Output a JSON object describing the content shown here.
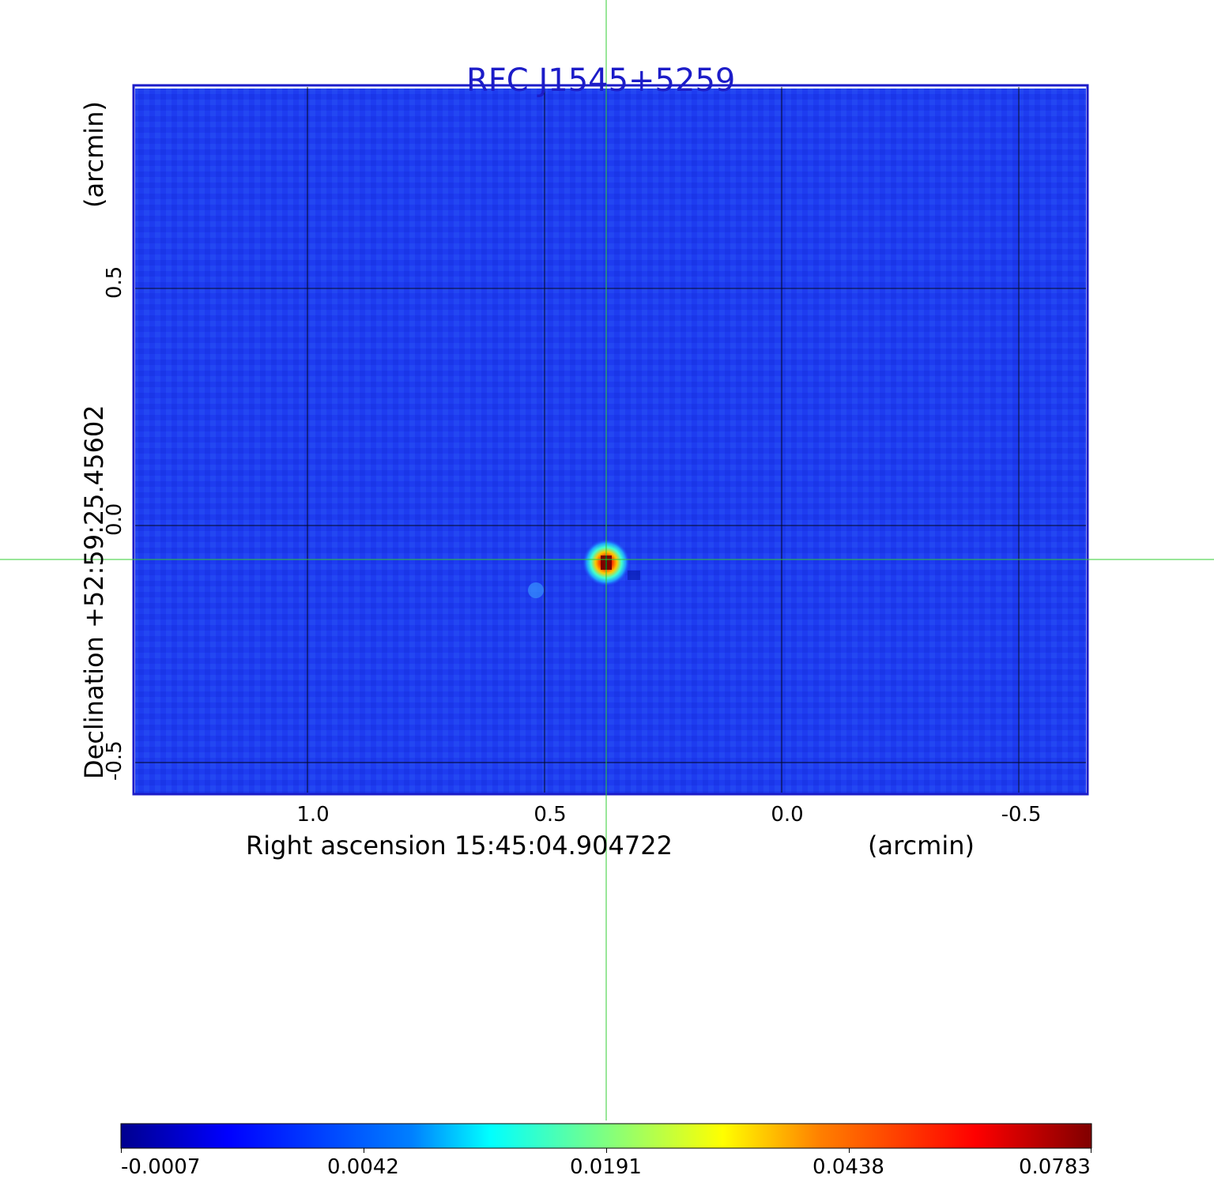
{
  "title": "RFC J1545+5259",
  "x_axis": {
    "label": "Right ascension  15:45:04.904722",
    "unit": "(arcmin)",
    "ticks": [
      "1.0",
      "0.5",
      "0.0",
      "-0.5"
    ]
  },
  "y_axis": {
    "label": "Declination  +52:59:25.45602",
    "unit": "(arcmin)",
    "ticks": [
      "0.5",
      "0.0",
      "-0.5"
    ]
  },
  "colorbar": {
    "ticks": [
      "-0.0007",
      "0.0042",
      "0.0191",
      "0.0438",
      "0.0783"
    ],
    "colormap": "jet",
    "min": -0.0007,
    "max": 0.0783
  },
  "colors": {
    "frame": "#1c1cc8",
    "title": "#1c1cc8",
    "crosshair": "#33cc33",
    "grid": "#000000",
    "background_field": "#1e3cf0"
  },
  "source": {
    "description_peak_value": 0.0783
  }
}
